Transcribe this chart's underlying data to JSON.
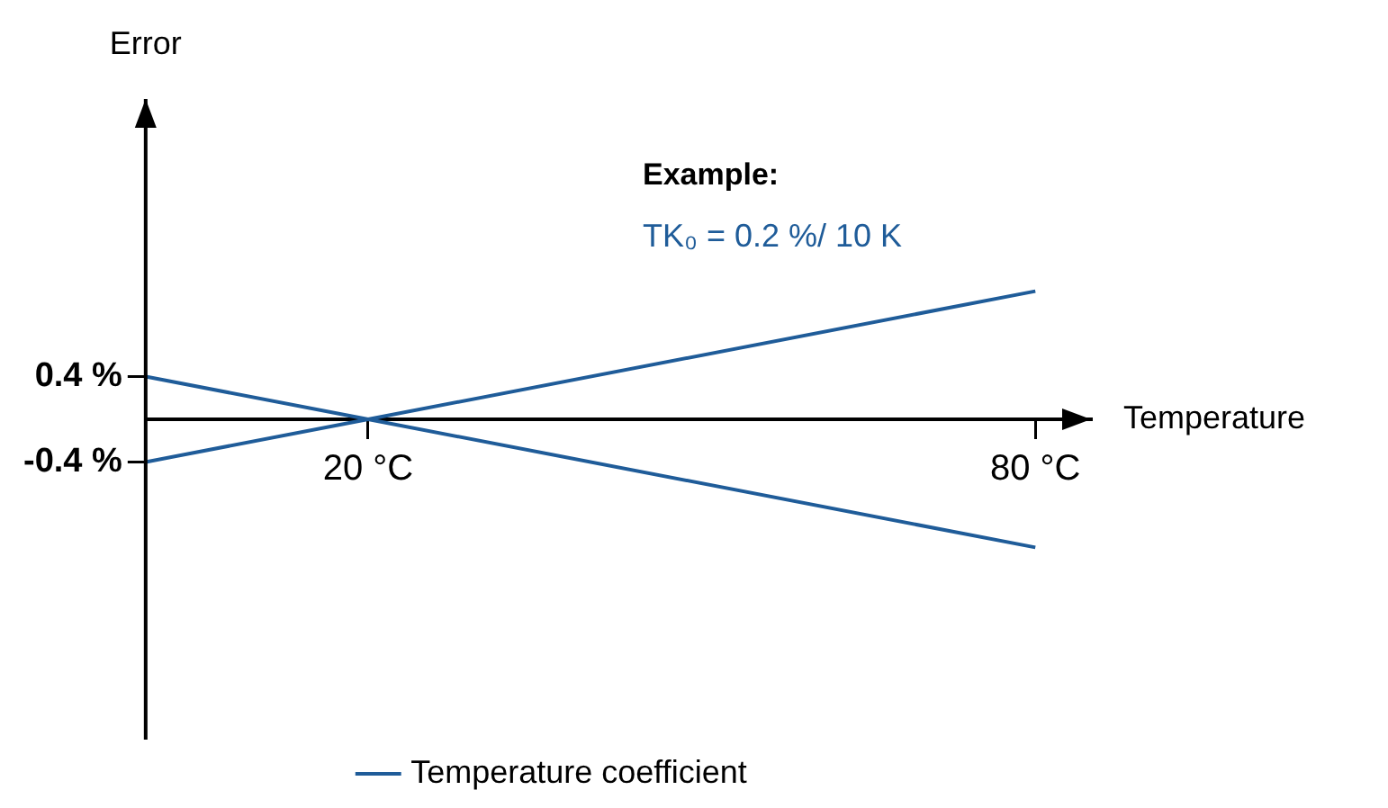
{
  "chart_data": {
    "type": "line",
    "xlabel": "Temperature",
    "ylabel": "Error",
    "annotations": [
      "Example:",
      "TK₀ = 0.2 %/ 10 K"
    ],
    "xlim": [
      0,
      85
    ],
    "ylim": [
      -3,
      3
    ],
    "xticks": [
      {
        "value": 20,
        "label": "20 °C"
      },
      {
        "value": 80,
        "label": "80 °C"
      }
    ],
    "yticks": [
      {
        "value": 0.4,
        "label": "0.4 %"
      },
      {
        "value": -0.4,
        "label": "-0.4 %"
      }
    ],
    "series": [
      {
        "name": "Temperature coefficient",
        "color": "#1f5c99",
        "x": [
          0,
          20,
          80
        ],
        "values": [
          0.4,
          0,
          -1.2
        ]
      },
      {
        "color": "#1f5c99",
        "x": [
          0,
          20,
          80
        ],
        "values": [
          -0.4,
          0,
          1.2
        ]
      }
    ],
    "grid": false,
    "legend": "bottom",
    "marker": "none",
    "line_style": "solid"
  }
}
